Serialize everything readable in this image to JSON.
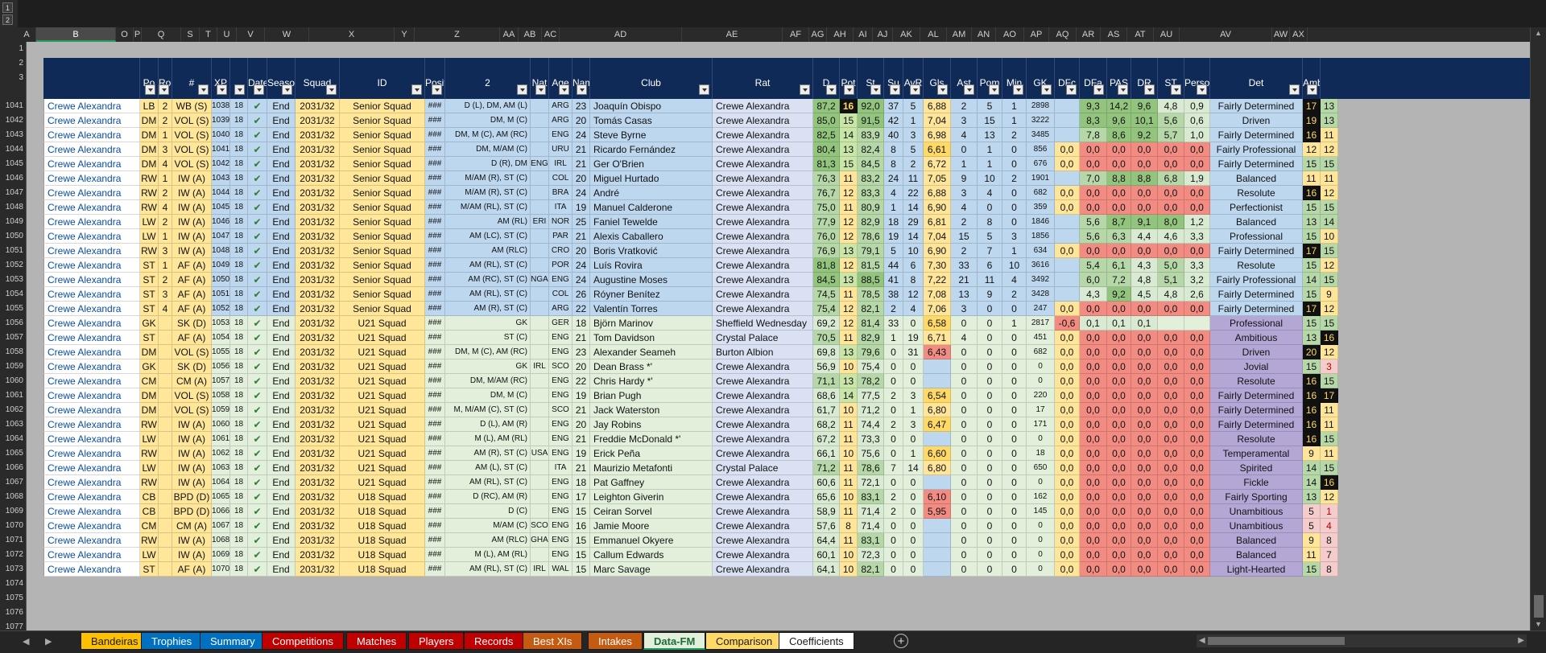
{
  "outline": {
    "levels": [
      "1",
      "2"
    ]
  },
  "column_headers": [
    "A",
    "B",
    "O",
    "P",
    "Q",
    "S",
    "T",
    "U",
    "V",
    "W",
    "X",
    "Y",
    "Z",
    "AA",
    "AB",
    "AC",
    "AD",
    "AE",
    "AF",
    "AG",
    "AH",
    "AI",
    "AJ",
    "AK",
    "AL",
    "AM",
    "AN",
    "AO",
    "AP",
    "AQ",
    "AR",
    "AS",
    "AT",
    "AU",
    "AV",
    "AW",
    "AX"
  ],
  "selected_column": "B",
  "row_numbers": [
    "1",
    "2",
    "3",
    "1041",
    "1042",
    "1043",
    "1044",
    "1045",
    "1046",
    "1047",
    "1048",
    "1049",
    "1050",
    "1051",
    "1052",
    "1053",
    "1054",
    "1055",
    "1056",
    "1057",
    "1058",
    "1059",
    "1060",
    "1061",
    "1062",
    "1063",
    "1064",
    "1065",
    "1066",
    "1067",
    "1068",
    "1069",
    "1070",
    "1071",
    "1072",
    "1073",
    "1074",
    "1075",
    "1076",
    "1077"
  ],
  "table_headers": [
    "",
    "Po",
    "Role",
    "#",
    "XP",
    "",
    "Date",
    "Season",
    "Squad",
    "ID",
    "Position",
    "2",
    "Nat",
    "Age",
    "Name",
    "Club",
    "Rat",
    "D",
    "Pot",
    "St",
    "Su",
    "AvR",
    "Gls",
    "Ast",
    "Pom",
    "Min",
    "GK",
    "DFc",
    "DFa",
    "PAS",
    "DR",
    "ST",
    "Personality",
    "Det",
    "Amb"
  ],
  "rows": [
    [
      "Crewe Alexandra",
      "LB",
      "2",
      "WB (S)",
      "1038",
      "18",
      "✔",
      "End",
      "2031/32",
      "Senior Squad",
      "###",
      "D (L), DM, AM (L)",
      "",
      "ARG",
      "23",
      "Joaquín Obispo",
      "Crewe Alexandra",
      "87,2",
      "16",
      "92,0",
      "37",
      "5",
      "6,88",
      "2",
      "5",
      "1",
      "2898",
      "",
      "9,3",
      "14,2",
      "9,6",
      "4,8",
      "0,9",
      "Fairly Determined",
      "17",
      "13"
    ],
    [
      "Crewe Alexandra",
      "DM",
      "2",
      "VOL (S)",
      "1039",
      "18",
      "✔",
      "End",
      "2031/32",
      "Senior Squad",
      "###",
      "DM, M (C)",
      "",
      "ARG",
      "20",
      "Tomás Casas",
      "Crewe Alexandra",
      "85,0",
      "15",
      "91,5",
      "42",
      "1",
      "7,04",
      "3",
      "15",
      "1",
      "3222",
      "",
      "8,3",
      "9,6",
      "10,1",
      "5,6",
      "0,6",
      "Driven",
      "19",
      "13"
    ],
    [
      "Crewe Alexandra",
      "DM",
      "1",
      "VOL (S)",
      "1040",
      "18",
      "✔",
      "End",
      "2031/32",
      "Senior Squad",
      "###",
      "DM, M (C), AM (RC)",
      "",
      "ENG",
      "24",
      "Steve Byrne",
      "Crewe Alexandra",
      "82,5",
      "14",
      "83,9",
      "40",
      "3",
      "6,98",
      "4",
      "13",
      "2",
      "3485",
      "",
      "7,8",
      "8,6",
      "9,2",
      "5,7",
      "1,0",
      "Fairly Determined",
      "16",
      "11"
    ],
    [
      "Crewe Alexandra",
      "DM",
      "3",
      "VOL (S)",
      "1041",
      "18",
      "✔",
      "End",
      "2031/32",
      "Senior Squad",
      "###",
      "DM, M/AM (C)",
      "",
      "URU",
      "21",
      "Ricardo Fernández",
      "Crewe Alexandra",
      "80,4",
      "13",
      "82,4",
      "8",
      "5",
      "6,61",
      "0",
      "1",
      "0",
      "856",
      "0,0",
      "0,0",
      "0,0",
      "0,0",
      "0,0",
      "0,0",
      "Fairly Professional",
      "12",
      "12"
    ],
    [
      "Crewe Alexandra",
      "DM",
      "4",
      "VOL (S)",
      "1042",
      "18",
      "✔",
      "End",
      "2031/32",
      "Senior Squad",
      "###",
      "D (R), DM",
      "ENG",
      "IRL",
      "21",
      "Ger O'Brien",
      "Crewe Alexandra",
      "81,3",
      "15",
      "84,5",
      "8",
      "2",
      "6,72",
      "1",
      "1",
      "0",
      "676",
      "0,0",
      "0,0",
      "0,0",
      "0,0",
      "0,0",
      "0,0",
      "Fairly Determined",
      "15",
      "15"
    ],
    [
      "Crewe Alexandra",
      "RW",
      "1",
      "IW (A)",
      "1043",
      "18",
      "✔",
      "End",
      "2031/32",
      "Senior Squad",
      "###",
      "M/AM (R), ST (C)",
      "",
      "COL",
      "20",
      "Miguel Hurtado",
      "Crewe Alexandra",
      "76,3",
      "11",
      "83,2",
      "24",
      "11",
      "7,05",
      "9",
      "10",
      "2",
      "1901",
      "",
      "7,0",
      "8,8",
      "8,8",
      "6,8",
      "1,9",
      "Balanced",
      "11",
      "11"
    ],
    [
      "Crewe Alexandra",
      "RW",
      "2",
      "IW (A)",
      "1044",
      "18",
      "✔",
      "End",
      "2031/32",
      "Senior Squad",
      "###",
      "M/AM (R), ST (C)",
      "",
      "BRA",
      "24",
      "André",
      "Crewe Alexandra",
      "76,7",
      "12",
      "83,3",
      "4",
      "22",
      "6,88",
      "3",
      "4",
      "0",
      "682",
      "0,0",
      "0,0",
      "0,0",
      "0,0",
      "0,0",
      "0,0",
      "Resolute",
      "16",
      "12"
    ],
    [
      "Crewe Alexandra",
      "RW",
      "4",
      "IW (A)",
      "1045",
      "18",
      "✔",
      "End",
      "2031/32",
      "Senior Squad",
      "###",
      "M/AM (RL), ST (C)",
      "",
      "ITA",
      "19",
      "Manuel Calderone",
      "Crewe Alexandra",
      "75,0",
      "11",
      "80,9",
      "1",
      "14",
      "6,90",
      "4",
      "0",
      "0",
      "359",
      "0,0",
      "0,0",
      "0,0",
      "0,0",
      "0,0",
      "0,0",
      "Perfectionist",
      "15",
      "15"
    ],
    [
      "Crewe Alexandra",
      "LW",
      "2",
      "IW (A)",
      "1046",
      "18",
      "✔",
      "End",
      "2031/32",
      "Senior Squad",
      "###",
      "AM (RL)",
      "ERI",
      "NOR",
      "25",
      "Faniel Tewelde",
      "Crewe Alexandra",
      "77,9",
      "12",
      "82,9",
      "18",
      "29",
      "6,81",
      "2",
      "8",
      "0",
      "1846",
      "",
      "5,6",
      "8,7",
      "9,1",
      "8,0",
      "1,2",
      "Balanced",
      "13",
      "14"
    ],
    [
      "Crewe Alexandra",
      "LW",
      "1",
      "IW (A)",
      "1047",
      "18",
      "✔",
      "End",
      "2031/32",
      "Senior Squad",
      "###",
      "AM (LC), ST (C)",
      "",
      "PAR",
      "21",
      "Alexis Caballero",
      "Crewe Alexandra",
      "76,0",
      "12",
      "78,6",
      "19",
      "14",
      "7,04",
      "15",
      "5",
      "3",
      "1856",
      "",
      "5,6",
      "6,3",
      "4,4",
      "4,6",
      "3,3",
      "Professional",
      "15",
      "10"
    ],
    [
      "Crewe Alexandra",
      "RW",
      "3",
      "IW (A)",
      "1048",
      "18",
      "✔",
      "End",
      "2031/32",
      "Senior Squad",
      "###",
      "AM (RLC)",
      "",
      "CRO",
      "20",
      "Boris Vratković",
      "Crewe Alexandra",
      "76,9",
      "13",
      "79,1",
      "5",
      "10",
      "6,90",
      "2",
      "7",
      "1",
      "634",
      "0,0",
      "0,0",
      "0,0",
      "0,0",
      "0,0",
      "0,0",
      "Fairly Determined",
      "17",
      "15"
    ],
    [
      "Crewe Alexandra",
      "ST",
      "1",
      "AF (A)",
      "1049",
      "18",
      "✔",
      "End",
      "2031/32",
      "Senior Squad",
      "###",
      "AM (RL), ST (C)",
      "",
      "POR",
      "24",
      "Luís Rovira",
      "Crewe Alexandra",
      "81,8",
      "12",
      "81,5",
      "44",
      "6",
      "7,30",
      "33",
      "6",
      "10",
      "3616",
      "",
      "5,4",
      "6,1",
      "4,3",
      "5,0",
      "3,3",
      "Resolute",
      "15",
      "12"
    ],
    [
      "Crewe Alexandra",
      "ST",
      "2",
      "AF (A)",
      "1050",
      "18",
      "✔",
      "End",
      "2031/32",
      "Senior Squad",
      "###",
      "AM (RC), ST (C)",
      "NGA",
      "ENG",
      "24",
      "Augustine Moses",
      "Crewe Alexandra",
      "84,5",
      "13",
      "88,5",
      "41",
      "8",
      "7,22",
      "21",
      "11",
      "4",
      "3492",
      "",
      "6,0",
      "7,2",
      "4,8",
      "5,1",
      "3,2",
      "Fairly Professional",
      "14",
      "15"
    ],
    [
      "Crewe Alexandra",
      "ST",
      "3",
      "AF (A)",
      "1051",
      "18",
      "✔",
      "End",
      "2031/32",
      "Senior Squad",
      "###",
      "AM (RL), ST (C)",
      "",
      "COL",
      "26",
      "Róyner Benítez",
      "Crewe Alexandra",
      "74,5",
      "11",
      "78,5",
      "38",
      "12",
      "7,08",
      "13",
      "9",
      "2",
      "3428",
      "",
      "4,3",
      "9,2",
      "4,5",
      "4,8",
      "2,6",
      "Fairly Determined",
      "15",
      "9"
    ],
    [
      "Crewe Alexandra",
      "ST",
      "4",
      "AF (A)",
      "1052",
      "18",
      "✔",
      "End",
      "2031/32",
      "Senior Squad",
      "###",
      "AM (R), ST (C)",
      "",
      "ARG",
      "22",
      "Valentín Torres",
      "Crewe Alexandra",
      "75,4",
      "12",
      "82,1",
      "2",
      "4",
      "7,06",
      "3",
      "0",
      "0",
      "247",
      "0,0",
      "0,0",
      "0,0",
      "0,0",
      "0,0",
      "0,0",
      "Fairly Determined",
      "17",
      "12"
    ],
    [
      "Crewe Alexandra",
      "GK",
      "",
      "SK (D)",
      "1053",
      "18",
      "✔",
      "End",
      "2031/32",
      "U21 Squad",
      "###",
      "GK",
      "",
      "GER",
      "18",
      "Björn Marinov",
      "Sheffield Wednesday",
      "69,2",
      "12",
      "81,4",
      "33",
      "0",
      "6,58",
      "0",
      "0",
      "1",
      "2817",
      "-0,6",
      "0,1",
      "0,1",
      "0,1",
      "",
      "",
      "Professional",
      "15",
      "15"
    ],
    [
      "Crewe Alexandra",
      "ST",
      "",
      "AF (A)",
      "1054",
      "18",
      "✔",
      "End",
      "2031/32",
      "U21 Squad",
      "###",
      "ST (C)",
      "",
      "ENG",
      "21",
      "Tom Davidson",
      "Crystal Palace",
      "70,5",
      "11",
      "82,9",
      "1",
      "19",
      "6,71",
      "4",
      "0",
      "0",
      "451",
      "0,0",
      "0,0",
      "0,0",
      "0,0",
      "0,0",
      "0,0",
      "Ambitious",
      "13",
      "16"
    ],
    [
      "Crewe Alexandra",
      "DM",
      "",
      "VOL (S)",
      "1055",
      "18",
      "✔",
      "End",
      "2031/32",
      "U21 Squad",
      "###",
      "DM, M (C), AM (RC)",
      "",
      "ENG",
      "23",
      "Alexander Seameh",
      "Burton Albion",
      "69,8",
      "13",
      "79,6",
      "0",
      "31",
      "6,43",
      "0",
      "0",
      "0",
      "682",
      "0,0",
      "0,0",
      "0,0",
      "0,0",
      "0,0",
      "0,0",
      "Driven",
      "20",
      "12"
    ],
    [
      "Crewe Alexandra",
      "GK",
      "",
      "SK (D)",
      "1056",
      "18",
      "✔",
      "End",
      "2031/32",
      "U21 Squad",
      "###",
      "GK",
      "IRL",
      "SCO",
      "20",
      "Dean Brass *'",
      "Crewe Alexandra",
      "56,9",
      "10",
      "75,4",
      "0",
      "0",
      "",
      "0",
      "0",
      "0",
      "0",
      "0,0",
      "0,0",
      "0,0",
      "0,0",
      "0,0",
      "0,0",
      "Jovial",
      "15",
      "3"
    ],
    [
      "Crewe Alexandra",
      "CM",
      "",
      "CM (A)",
      "1057",
      "18",
      "✔",
      "End",
      "2031/32",
      "U21 Squad",
      "###",
      "DM, M/AM (RC)",
      "",
      "ENG",
      "22",
      "Chris Hardy *'",
      "Crewe Alexandra",
      "71,1",
      "13",
      "78,2",
      "0",
      "0",
      "",
      "0",
      "0",
      "0",
      "0",
      "0,0",
      "0,0",
      "0,0",
      "0,0",
      "0,0",
      "0,0",
      "Resolute",
      "16",
      "15"
    ],
    [
      "Crewe Alexandra",
      "DM",
      "",
      "VOL (S)",
      "1058",
      "18",
      "✔",
      "End",
      "2031/32",
      "U21 Squad",
      "###",
      "DM, M (C)",
      "",
      "ENG",
      "19",
      "Brian Pugh",
      "Crewe Alexandra",
      "68,6",
      "14",
      "77,5",
      "2",
      "3",
      "6,54",
      "0",
      "0",
      "0",
      "220",
      "0,0",
      "0,0",
      "0,0",
      "0,0",
      "0,0",
      "0,0",
      "Fairly Determined",
      "16",
      "17"
    ],
    [
      "Crewe Alexandra",
      "DM",
      "",
      "VOL (S)",
      "1059",
      "18",
      "✔",
      "End",
      "2031/32",
      "U21 Squad",
      "###",
      "M, M/AM (C), ST (C)",
      "",
      "SCO",
      "21",
      "Jack Waterston",
      "Crewe Alexandra",
      "61,7",
      "10",
      "71,2",
      "0",
      "1",
      "6,80",
      "0",
      "0",
      "0",
      "17",
      "0,0",
      "0,0",
      "0,0",
      "0,0",
      "0,0",
      "0,0",
      "Fairly Determined",
      "16",
      "11"
    ],
    [
      "Crewe Alexandra",
      "RW",
      "",
      "IW (A)",
      "1060",
      "18",
      "✔",
      "End",
      "2031/32",
      "U21 Squad",
      "###",
      "D (L), AM (R)",
      "",
      "ENG",
      "20",
      "Jay Robins",
      "Crewe Alexandra",
      "68,2",
      "11",
      "74,4",
      "2",
      "3",
      "6,47",
      "0",
      "0",
      "0",
      "171",
      "0,0",
      "0,0",
      "0,0",
      "0,0",
      "0,0",
      "0,0",
      "Fairly Determined",
      "16",
      "11"
    ],
    [
      "Crewe Alexandra",
      "LW",
      "",
      "IW (A)",
      "1061",
      "18",
      "✔",
      "End",
      "2031/32",
      "U21 Squad",
      "###",
      "M (L), AM (RL)",
      "",
      "ENG",
      "21",
      "Freddie McDonald *'",
      "Crewe Alexandra",
      "67,2",
      "11",
      "73,3",
      "0",
      "0",
      "",
      "0",
      "0",
      "0",
      "0",
      "0,0",
      "0,0",
      "0,0",
      "0,0",
      "0,0",
      "0,0",
      "Resolute",
      "16",
      "15"
    ],
    [
      "Crewe Alexandra",
      "RW",
      "",
      "IW (A)",
      "1062",
      "18",
      "✔",
      "End",
      "2031/32",
      "U21 Squad",
      "###",
      "AM (R), ST (C)",
      "USA",
      "ENG",
      "19",
      "Erick Peña",
      "Crewe Alexandra",
      "66,1",
      "10",
      "75,6",
      "0",
      "1",
      "6,60",
      "0",
      "0",
      "0",
      "18",
      "0,0",
      "0,0",
      "0,0",
      "0,0",
      "0,0",
      "0,0",
      "Temperamental",
      "9",
      "11"
    ],
    [
      "Crewe Alexandra",
      "LW",
      "",
      "IW (A)",
      "1063",
      "18",
      "✔",
      "End",
      "2031/32",
      "U21 Squad",
      "###",
      "AM (L), ST (C)",
      "",
      "ITA",
      "21",
      "Maurizio Metafonti",
      "Crystal Palace",
      "71,2",
      "11",
      "78,6",
      "7",
      "14",
      "6,80",
      "0",
      "0",
      "0",
      "650",
      "0,0",
      "0,0",
      "0,0",
      "0,0",
      "0,0",
      "0,0",
      "Spirited",
      "14",
      "15"
    ],
    [
      "Crewe Alexandra",
      "RW",
      "",
      "IW (A)",
      "1064",
      "18",
      "✔",
      "End",
      "2031/32",
      "U21 Squad",
      "###",
      "AM (RL), ST (C)",
      "",
      "ENG",
      "18",
      "Pat Gaffney",
      "Crewe Alexandra",
      "60,6",
      "11",
      "72,1",
      "0",
      "0",
      "",
      "0",
      "0",
      "0",
      "0",
      "0,0",
      "0,0",
      "0,0",
      "0,0",
      "0,0",
      "0,0",
      "Fickle",
      "14",
      "16"
    ],
    [
      "Crewe Alexandra",
      "CB",
      "",
      "BPD (D)",
      "1065",
      "18",
      "✔",
      "End",
      "2031/32",
      "U18 Squad",
      "###",
      "D (RC), AM (R)",
      "",
      "ENG",
      "17",
      "Leighton Giverin",
      "Crewe Alexandra",
      "65,6",
      "10",
      "83,1",
      "2",
      "0",
      "6,10",
      "0",
      "0",
      "0",
      "162",
      "0,0",
      "0,0",
      "0,0",
      "0,0",
      "0,0",
      "0,0",
      "Fairly Sporting",
      "13",
      "12"
    ],
    [
      "Crewe Alexandra",
      "CB",
      "",
      "BPD (D)",
      "1066",
      "18",
      "✔",
      "End",
      "2031/32",
      "U18 Squad",
      "###",
      "D (C)",
      "",
      "ENG",
      "15",
      "Ceiran Sorvel",
      "Crewe Alexandra",
      "58,9",
      "11",
      "71,4",
      "2",
      "0",
      "5,95",
      "0",
      "0",
      "0",
      "145",
      "0,0",
      "0,0",
      "0,0",
      "0,0",
      "0,0",
      "0,0",
      "Unambitious",
      "5",
      "1"
    ],
    [
      "Crewe Alexandra",
      "CM",
      "",
      "CM (A)",
      "1067",
      "18",
      "✔",
      "End",
      "2031/32",
      "U18 Squad",
      "###",
      "M/AM (C)",
      "SCO",
      "ENG",
      "16",
      "Jamie Moore",
      "Crewe Alexandra",
      "57,6",
      "8",
      "71,4",
      "0",
      "0",
      "",
      "0",
      "0",
      "0",
      "0",
      "0,0",
      "0,0",
      "0,0",
      "0,0",
      "0,0",
      "0,0",
      "Unambitious",
      "5",
      "4"
    ],
    [
      "Crewe Alexandra",
      "RW",
      "",
      "IW (A)",
      "1068",
      "18",
      "✔",
      "End",
      "2031/32",
      "U18 Squad",
      "###",
      "AM (RLC)",
      "GHA",
      "ENG",
      "15",
      "Emmanuel Okyere",
      "Crewe Alexandra",
      "64,4",
      "11",
      "83,1",
      "0",
      "0",
      "",
      "0",
      "0",
      "0",
      "0",
      "0,0",
      "0,0",
      "0,0",
      "0,0",
      "0,0",
      "0,0",
      "Balanced",
      "9",
      "8"
    ],
    [
      "Crewe Alexandra",
      "LW",
      "",
      "IW (A)",
      "1069",
      "18",
      "✔",
      "End",
      "2031/32",
      "U18 Squad",
      "###",
      "M (L), AM (RL)",
      "",
      "ENG",
      "15",
      "Callum Edwards",
      "Crewe Alexandra",
      "60,1",
      "10",
      "72,3",
      "0",
      "0",
      "",
      "0",
      "0",
      "0",
      "0",
      "0,0",
      "0,0",
      "0,0",
      "0,0",
      "0,0",
      "0,0",
      "Balanced",
      "11",
      "7"
    ],
    [
      "Crewe Alexandra",
      "ST",
      "",
      "AF (A)",
      "1070",
      "18",
      "✔",
      "End",
      "2031/32",
      "U18 Squad",
      "###",
      "AM (RL), ST (C)",
      "IRL",
      "WAL",
      "15",
      "Marc Savage",
      "Crewe Alexandra",
      "64,1",
      "10",
      "82,1",
      "0",
      "0",
      "",
      "0",
      "0",
      "0",
      "0",
      "0,0",
      "0,0",
      "0,0",
      "0,0",
      "0,0",
      "0,0",
      "Light-Hearted",
      "15",
      "8"
    ]
  ],
  "sheet_tabs": [
    {
      "label": "Bandeiras",
      "color": "#ffc000"
    },
    {
      "label": "Trophies",
      "color": "#0070c0"
    },
    {
      "label": "Summary",
      "color": "#0070c0"
    },
    {
      "label": "Competitions",
      "color": "#c00000"
    },
    {
      "label": "Matches",
      "color": "#c00000"
    },
    {
      "label": "Players",
      "color": "#c00000"
    },
    {
      "label": "Records",
      "color": "#c00000"
    },
    {
      "label": "Best XIs",
      "color": "#c55a11"
    },
    {
      "label": "Intakes",
      "color": "#c55a11"
    },
    {
      "label": "Data-FM",
      "color": "#e2efda"
    },
    {
      "label": "Comparison",
      "color": "#ffd966"
    },
    {
      "label": "Coefficients",
      "color": "#ffffff"
    }
  ],
  "active_tab": "Data-FM",
  "colors": {
    "header_navy": "#0f2a57",
    "grid_bg": "#b4b4b4",
    "rat_green": "#a9d08e",
    "zero_red": "#f28b82",
    "yellow": "#ffeb84",
    "det_black": "#111111"
  },
  "icons": {
    "add_sheet": "plus-circle-icon",
    "check": "check-icon",
    "filter": "filter-dropdown-icon"
  }
}
